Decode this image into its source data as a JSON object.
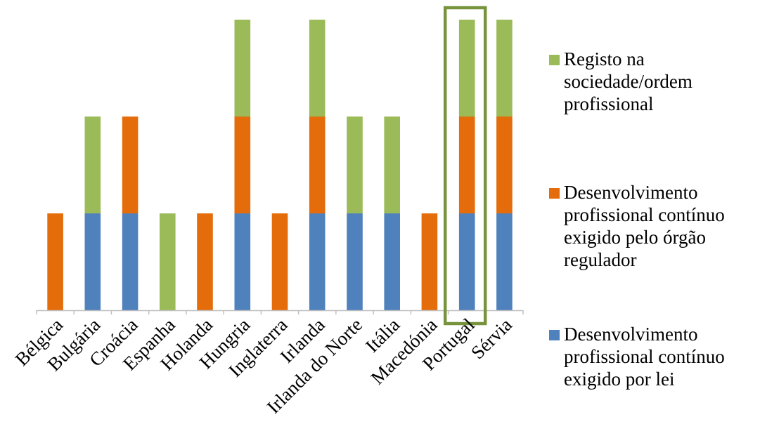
{
  "chart_data": {
    "type": "bar",
    "stacked": true,
    "title": "",
    "xlabel": "",
    "ylabel": "",
    "ylim": [
      0,
      3
    ],
    "grid": false,
    "legend_position": "right",
    "categories": [
      "Bélgica",
      "Bulgária",
      "Croácia",
      "Espanha",
      "Holanda",
      "Hungria",
      "Inglaterra",
      "Irlanda",
      "Irlanda do Norte",
      "Itália",
      "Macedónia",
      "Portugal",
      "Sérvia"
    ],
    "series": [
      {
        "name": "Desenvolvimento profissional contínuo exigido por lei",
        "color": "#4f81bd",
        "values": [
          0,
          1,
          1,
          0,
          0,
          1,
          0,
          1,
          1,
          1,
          0,
          1,
          1
        ]
      },
      {
        "name": "Desenvolvimento profissional contínuo exigido pelo órgão regulador",
        "color": "#e46c0a",
        "values": [
          1,
          0,
          1,
          0,
          1,
          1,
          1,
          1,
          0,
          0,
          1,
          1,
          1
        ]
      },
      {
        "name": "Registo na sociedade/ordem profissional",
        "color": "#9bbb59",
        "values": [
          0,
          1,
          0,
          1,
          0,
          1,
          0,
          1,
          1,
          1,
          0,
          1,
          1
        ]
      }
    ],
    "legend": {
      "entries": [
        {
          "lines": [
            "Registo na",
            "sociedade/ordem",
            "profissional"
          ],
          "color": "#9bbb59"
        },
        {
          "lines": [
            "Desenvolvimento",
            "profissional contínuo",
            "exigido pelo órgão",
            "regulador"
          ],
          "color": "#e46c0a"
        },
        {
          "lines": [
            "Desenvolvimento",
            "profissional contínuo",
            "exigido por lei"
          ],
          "color": "#4f81bd"
        }
      ]
    },
    "highlight": {
      "category": "Portugal",
      "color": "#77933c"
    },
    "axis_color": "#bfbfbf"
  }
}
